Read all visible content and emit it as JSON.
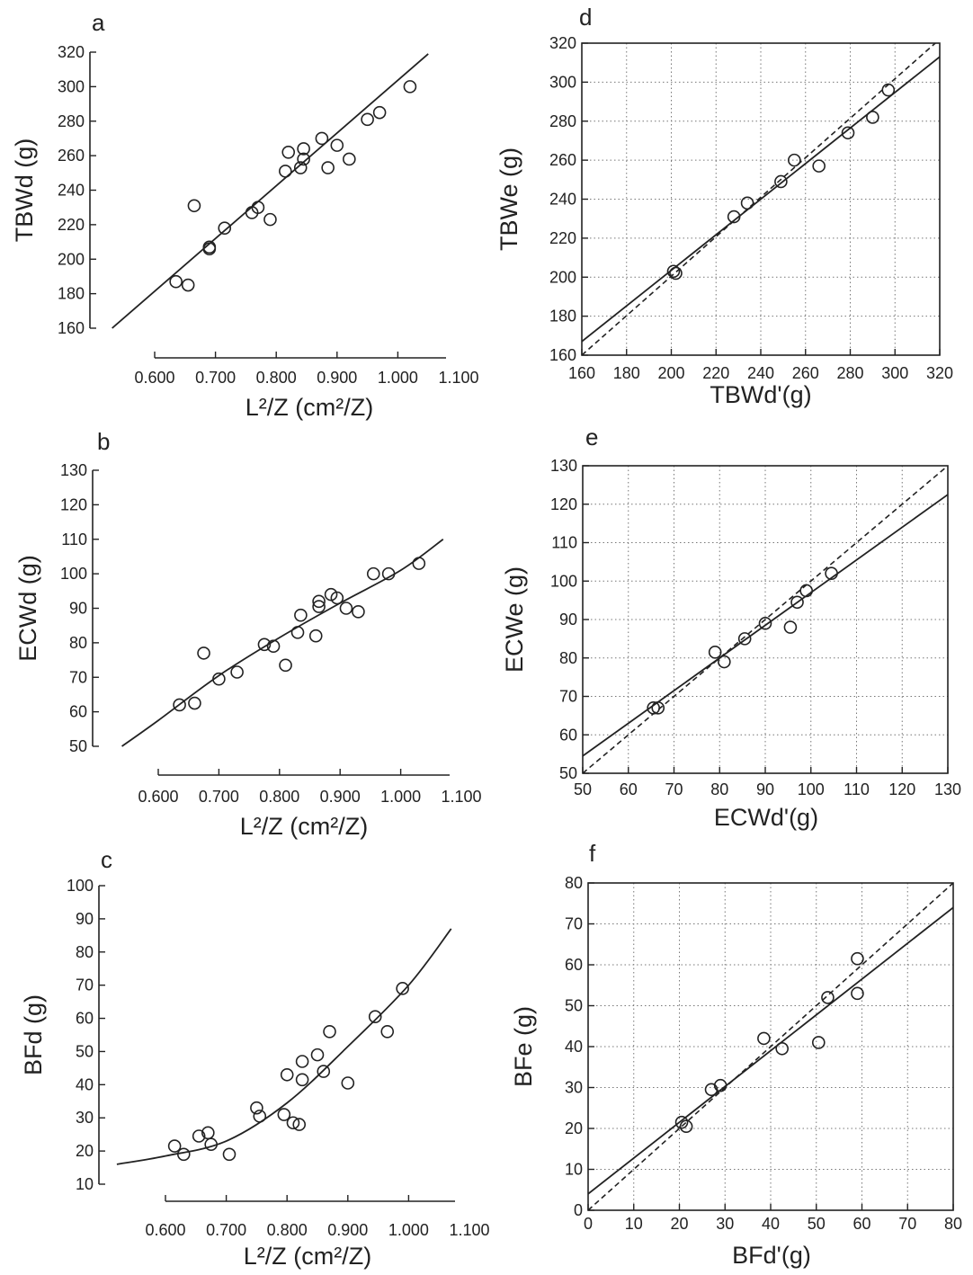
{
  "chart_data": [
    {
      "panel": "a",
      "type": "scatter",
      "show_grid": false,
      "xlabel": "L²/Z (cm²/Z)",
      "ylabel": "TBWd (g)",
      "xlim": [
        0.6,
        1.1
      ],
      "ylim": [
        160,
        320
      ],
      "xtick_labels": [
        "0.600",
        "0.700",
        "0.800",
        "0.900",
        "1.000",
        "1.100"
      ],
      "ytick_labels": [
        "160",
        "180",
        "200",
        "220",
        "240",
        "260",
        "280",
        "300",
        "320"
      ],
      "points": [
        [
          0.635,
          187
        ],
        [
          0.655,
          185
        ],
        [
          0.665,
          231
        ],
        [
          0.69,
          207
        ],
        [
          0.69,
          206
        ],
        [
          0.715,
          218
        ],
        [
          0.76,
          227
        ],
        [
          0.77,
          230
        ],
        [
          0.79,
          223
        ],
        [
          0.815,
          251
        ],
        [
          0.82,
          262
        ],
        [
          0.84,
          253
        ],
        [
          0.845,
          258
        ],
        [
          0.845,
          264
        ],
        [
          0.875,
          270
        ],
        [
          0.885,
          253
        ],
        [
          0.9,
          266
        ],
        [
          0.92,
          258
        ],
        [
          0.95,
          281
        ],
        [
          0.97,
          285
        ],
        [
          1.02,
          300
        ]
      ],
      "fit": {
        "kind": "line",
        "x0": 0.53,
        "y0": 160,
        "x1": 1.05,
        "y1": 319
      }
    },
    {
      "panel": "b",
      "type": "scatter",
      "show_grid": false,
      "xlabel": "L²/Z (cm²/Z)",
      "ylabel": "ECWd (g)",
      "xlim": [
        0.6,
        1.1
      ],
      "ylim": [
        50,
        130
      ],
      "xtick_labels": [
        "0.600",
        "0.700",
        "0.800",
        "0.900",
        "1.000",
        "1.100"
      ],
      "ytick_labels": [
        "50",
        "60",
        "70",
        "80",
        "90",
        "100",
        "110",
        "120",
        "130"
      ],
      "points": [
        [
          0.635,
          62
        ],
        [
          0.66,
          62.5
        ],
        [
          0.675,
          77
        ],
        [
          0.7,
          69.5
        ],
        [
          0.73,
          71.5
        ],
        [
          0.775,
          79.5
        ],
        [
          0.79,
          79
        ],
        [
          0.81,
          73.5
        ],
        [
          0.83,
          83
        ],
        [
          0.835,
          88
        ],
        [
          0.86,
          82
        ],
        [
          0.865,
          90.5
        ],
        [
          0.865,
          92
        ],
        [
          0.885,
          94
        ],
        [
          0.895,
          93
        ],
        [
          0.91,
          90
        ],
        [
          0.93,
          89
        ],
        [
          0.955,
          100
        ],
        [
          0.98,
          100
        ],
        [
          1.03,
          103
        ]
      ],
      "fit": {
        "kind": "curve",
        "points": [
          [
            0.54,
            50
          ],
          [
            0.6,
            57.5
          ],
          [
            0.7,
            70.5
          ],
          [
            0.8,
            81.5
          ],
          [
            0.9,
            91.5
          ],
          [
            1.0,
            101
          ],
          [
            1.07,
            110
          ]
        ]
      }
    },
    {
      "panel": "c",
      "type": "scatter",
      "show_grid": false,
      "xlabel": "L²/Z (cm²/Z)",
      "ylabel": "BFd (g)",
      "xlim": [
        0.6,
        1.1
      ],
      "ylim": [
        10,
        100
      ],
      "xtick_labels": [
        "0.600",
        "0.700",
        "0.800",
        "0.900",
        "1.000",
        "1.100"
      ],
      "ytick_labels": [
        "10",
        "20",
        "30",
        "40",
        "50",
        "60",
        "70",
        "80",
        "90",
        "100"
      ],
      "points": [
        [
          0.615,
          21.5
        ],
        [
          0.63,
          19
        ],
        [
          0.655,
          24.5
        ],
        [
          0.67,
          25.5
        ],
        [
          0.675,
          22
        ],
        [
          0.705,
          19
        ],
        [
          0.75,
          33
        ],
        [
          0.755,
          30.5
        ],
        [
          0.795,
          31
        ],
        [
          0.8,
          43
        ],
        [
          0.81,
          28.5
        ],
        [
          0.82,
          28
        ],
        [
          0.825,
          47
        ],
        [
          0.825,
          41.5
        ],
        [
          0.85,
          49
        ],
        [
          0.86,
          44
        ],
        [
          0.87,
          56
        ],
        [
          0.9,
          40.5
        ],
        [
          0.945,
          60.5
        ],
        [
          0.965,
          56
        ],
        [
          0.99,
          69
        ]
      ],
      "fit": {
        "kind": "curve",
        "points": [
          [
            0.52,
            16
          ],
          [
            0.6,
            18.5
          ],
          [
            0.7,
            23
          ],
          [
            0.8,
            34.5
          ],
          [
            0.9,
            51.5
          ],
          [
            1.0,
            70
          ],
          [
            1.07,
            87
          ]
        ]
      }
    },
    {
      "panel": "d",
      "type": "scatter",
      "show_grid": true,
      "xlabel": "TBWd'(g)",
      "ylabel": "TBWe (g)",
      "xlim": [
        160,
        320
      ],
      "ylim": [
        160,
        320
      ],
      "xtick_labels": [
        "160",
        "180",
        "200",
        "220",
        "240",
        "260",
        "280",
        "300",
        "320"
      ],
      "ytick_labels": [
        "160",
        "180",
        "200",
        "220",
        "240",
        "260",
        "280",
        "300",
        "320"
      ],
      "points": [
        [
          201,
          203
        ],
        [
          202,
          202
        ],
        [
          228,
          231
        ],
        [
          234,
          238
        ],
        [
          249,
          249
        ],
        [
          255,
          260
        ],
        [
          266,
          257
        ],
        [
          279,
          274
        ],
        [
          290,
          282
        ],
        [
          297,
          296
        ]
      ],
      "fit": {
        "kind": "line",
        "x0": 160,
        "y0": 167,
        "x1": 320,
        "y1": 313
      },
      "identity": {
        "x0": 160,
        "y0": 160,
        "x1": 320,
        "y1": 322
      }
    },
    {
      "panel": "e",
      "type": "scatter",
      "show_grid": true,
      "xlabel": "ECWd'(g)",
      "ylabel": "ECWe (g)",
      "xlim": [
        50,
        130
      ],
      "ylim": [
        50,
        130
      ],
      "xtick_labels": [
        "50",
        "60",
        "70",
        "80",
        "90",
        "100",
        "110",
        "120",
        "130"
      ],
      "ytick_labels": [
        "50",
        "60",
        "70",
        "80",
        "90",
        "100",
        "110",
        "120",
        "130"
      ],
      "points": [
        [
          65.5,
          67
        ],
        [
          66.5,
          67
        ],
        [
          79,
          81.5
        ],
        [
          81,
          79
        ],
        [
          85.5,
          85
        ],
        [
          90,
          89
        ],
        [
          95.5,
          88
        ],
        [
          97,
          94.5
        ],
        [
          99,
          97.5
        ],
        [
          104.5,
          102
        ]
      ],
      "fit": {
        "kind": "line",
        "x0": 50,
        "y0": 54.5,
        "x1": 130,
        "y1": 122.5
      },
      "identity": {
        "x0": 50,
        "y0": 50,
        "x1": 130,
        "y1": 130
      }
    },
    {
      "panel": "f",
      "type": "scatter",
      "show_grid": true,
      "xlabel": "BFd'(g)",
      "ylabel": "BFe (g)",
      "xlim": [
        0,
        80
      ],
      "ylim": [
        0,
        80
      ],
      "xtick_labels": [
        "0",
        "10",
        "20",
        "30",
        "40",
        "50",
        "60",
        "70",
        "80"
      ],
      "ytick_labels": [
        "0",
        "10",
        "20",
        "30",
        "40",
        "50",
        "60",
        "70",
        "80"
      ],
      "points": [
        [
          20.5,
          21.5
        ],
        [
          21.5,
          20.5
        ],
        [
          27,
          29.5
        ],
        [
          29,
          30.5
        ],
        [
          38.5,
          42
        ],
        [
          42.5,
          39.5
        ],
        [
          50.5,
          41
        ],
        [
          52.5,
          52
        ],
        [
          59,
          53
        ],
        [
          59,
          61.5
        ]
      ],
      "fit": {
        "kind": "line",
        "x0": 0,
        "y0": 4,
        "x1": 80,
        "y1": 74
      },
      "identity": {
        "x0": 0,
        "y0": 0,
        "x1": 80,
        "y1": 80
      }
    }
  ]
}
